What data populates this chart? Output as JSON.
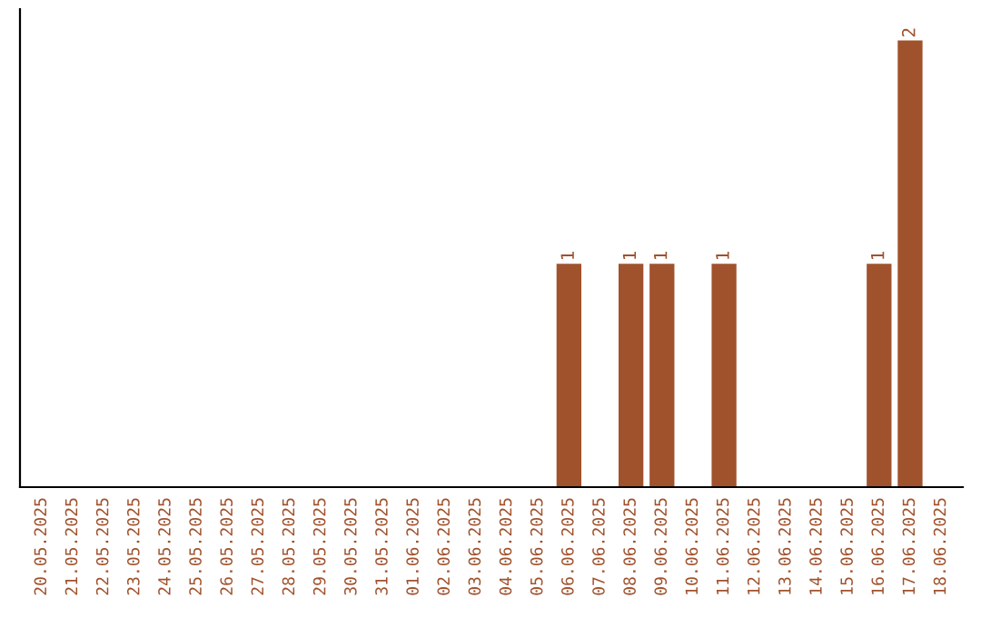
{
  "chart_data": {
    "type": "bar",
    "categories": [
      "20.05.2025",
      "21.05.2025",
      "22.05.2025",
      "23.05.2025",
      "24.05.2025",
      "25.05.2025",
      "26.05.2025",
      "27.05.2025",
      "28.05.2025",
      "29.05.2025",
      "30.05.2025",
      "31.05.2025",
      "01.06.2025",
      "02.06.2025",
      "03.06.2025",
      "04.06.2025",
      "05.06.2025",
      "06.06.2025",
      "07.06.2025",
      "08.06.2025",
      "09.06.2025",
      "10.06.2025",
      "11.06.2025",
      "12.06.2025",
      "13.06.2025",
      "14.06.2025",
      "15.06.2025",
      "16.06.2025",
      "17.06.2025",
      "18.06.2025"
    ],
    "values": [
      null,
      null,
      null,
      null,
      null,
      null,
      null,
      null,
      null,
      null,
      null,
      null,
      null,
      null,
      null,
      null,
      null,
      1,
      null,
      1,
      1,
      null,
      1,
      null,
      null,
      null,
      null,
      1,
      2,
      null
    ],
    "data_labels": true,
    "color": "#a0522d",
    "tick_labels": "x",
    "grid": false,
    "legend": false
  }
}
